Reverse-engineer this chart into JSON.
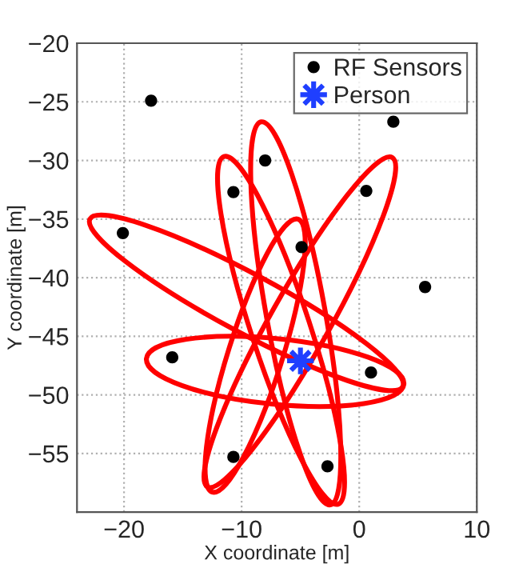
{
  "chart_data": {
    "type": "scatter",
    "xlabel": "X coordinate [m]",
    "ylabel": "Y coordinate [m]",
    "xlim": [
      -24,
      10
    ],
    "ylim": [
      -60,
      -20
    ],
    "xticks": [
      {
        "value": -20,
        "label": "−20"
      },
      {
        "value": -10,
        "label": "−10"
      },
      {
        "value": 0,
        "label": "0"
      },
      {
        "value": 10,
        "label": "10"
      }
    ],
    "yticks": [
      {
        "value": -55,
        "label": "−55"
      },
      {
        "value": -50,
        "label": "−50"
      },
      {
        "value": -45,
        "label": "−45"
      },
      {
        "value": -40,
        "label": "−40"
      },
      {
        "value": -35,
        "label": "−35"
      },
      {
        "value": -30,
        "label": "−30"
      },
      {
        "value": -25,
        "label": "−25"
      },
      {
        "value": -20,
        "label": "−20"
      }
    ],
    "grid": true,
    "legend": "top right",
    "series": [
      {
        "name": "RF Sensors",
        "color": "#000000",
        "marker": "circle",
        "x": [
          -17.7,
          2.9,
          -8.0,
          -10.7,
          0.6,
          -20.1,
          -4.9,
          5.6,
          -15.9,
          1.0,
          -10.7,
          -2.7
        ],
        "values": [
          -24.9,
          -26.7,
          -30.0,
          -32.7,
          -32.6,
          -36.2,
          -37.4,
          -40.8,
          -46.8,
          -48.1,
          -55.3,
          -56.1
        ]
      },
      {
        "name": "Person",
        "color": "#1f3fff",
        "marker": "star",
        "x": [
          -5.0
        ],
        "values": [
          -47.1
        ]
      }
    ]
  }
}
